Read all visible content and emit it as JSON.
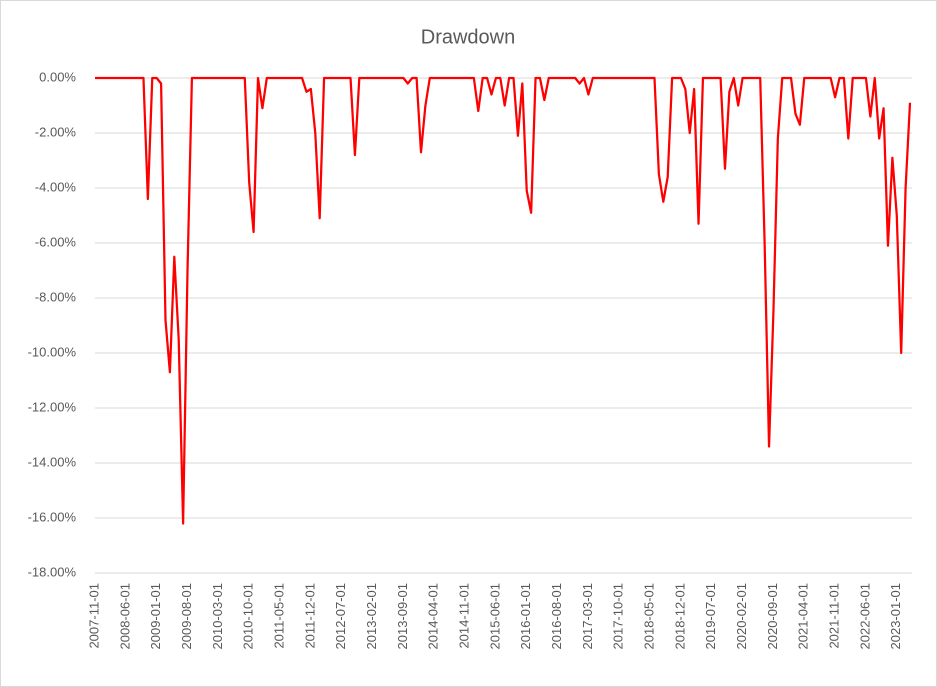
{
  "chart_data": {
    "type": "line",
    "title": "Drawdown",
    "categories": [
      "2007-11-01",
      null,
      null,
      null,
      null,
      null,
      null,
      "2008-06-01",
      null,
      null,
      null,
      null,
      null,
      null,
      "2009-01-01",
      null,
      null,
      null,
      null,
      null,
      null,
      "2009-08-01",
      null,
      null,
      null,
      null,
      null,
      null,
      "2010-03-01",
      null,
      null,
      null,
      null,
      null,
      null,
      "2010-10-01",
      null,
      null,
      null,
      null,
      null,
      null,
      "2011-05-01",
      null,
      null,
      null,
      null,
      null,
      null,
      "2011-12-01",
      null,
      null,
      null,
      null,
      null,
      null,
      "2012-07-01",
      null,
      null,
      null,
      null,
      null,
      null,
      "2013-02-01",
      null,
      null,
      null,
      null,
      null,
      null,
      "2013-09-01",
      null,
      null,
      null,
      null,
      null,
      null,
      "2014-04-01",
      null,
      null,
      null,
      null,
      null,
      null,
      "2014-11-01",
      null,
      null,
      null,
      null,
      null,
      null,
      "2015-06-01",
      null,
      null,
      null,
      null,
      null,
      null,
      "2016-01-01",
      null,
      null,
      null,
      null,
      null,
      null,
      "2016-08-01",
      null,
      null,
      null,
      null,
      null,
      null,
      "2017-03-01",
      null,
      null,
      null,
      null,
      null,
      null,
      "2017-10-01",
      null,
      null,
      null,
      null,
      null,
      null,
      "2018-05-01",
      null,
      null,
      null,
      null,
      null,
      null,
      "2018-12-01",
      null,
      null,
      null,
      null,
      null,
      null,
      "2019-07-01",
      null,
      null,
      null,
      null,
      null,
      null,
      "2020-02-01",
      null,
      null,
      null,
      null,
      null,
      null,
      "2020-09-01",
      null,
      null,
      null,
      null,
      null,
      null,
      "2021-04-01",
      null,
      null,
      null,
      null,
      null,
      null,
      "2021-11-01",
      null,
      null,
      null,
      null,
      null,
      null,
      "2022-06-01",
      null,
      null,
      null,
      null,
      null,
      null,
      "2023-01-01",
      null,
      null,
      null
    ],
    "values": [
      0,
      0,
      0,
      0,
      0,
      0,
      0,
      0,
      0,
      0,
      0,
      0,
      -4.4,
      0,
      0,
      -0.2,
      -8.8,
      -10.7,
      -6.5,
      -9.5,
      -16.2,
      -7,
      0,
      0,
      0,
      0,
      0,
      0,
      0,
      0,
      0,
      0,
      0,
      0,
      0,
      -3.8,
      -5.6,
      0,
      -1.1,
      0,
      0,
      0,
      0,
      0,
      0,
      0,
      0,
      0,
      -0.5,
      -0.4,
      -2.0,
      -5.1,
      0,
      0,
      0,
      0,
      0,
      0,
      0,
      -2.8,
      0,
      0,
      0,
      0,
      0,
      0,
      0,
      0,
      0,
      0,
      0,
      -0.2,
      0,
      0,
      -2.7,
      -1.0,
      0,
      0,
      0,
      0,
      0,
      0,
      0,
      0,
      0,
      0,
      0,
      -1.2,
      0,
      0,
      -0.6,
      0,
      0,
      -1.0,
      0,
      0,
      -2.1,
      -0.2,
      -4.1,
      -4.9,
      0,
      0,
      -0.8,
      0,
      0,
      0,
      0,
      0,
      0,
      0,
      -0.2,
      0,
      -0.6,
      0,
      0,
      0,
      0,
      0,
      0,
      0,
      0,
      0,
      0,
      0,
      0,
      0,
      0,
      0,
      -3.5,
      -4.5,
      -3.6,
      0,
      0,
      0,
      -0.4,
      -2.0,
      -0.4,
      -5.3,
      0,
      0,
      0,
      0,
      0,
      -3.3,
      -0.5,
      0,
      -1.0,
      0,
      0,
      0,
      0,
      0,
      -6.0,
      -13.4,
      -8.5,
      -2.2,
      0,
      0,
      0,
      -1.3,
      -1.7,
      0,
      0,
      0,
      0,
      0,
      0,
      0,
      -0.7,
      0,
      0,
      -2.2,
      0,
      0,
      0,
      0,
      -1.4,
      0,
      -2.2,
      -1.1,
      -6.1,
      -2.9,
      -5.0,
      -10.0,
      -4.0,
      -0.9
    ],
    "color": "#ff0000",
    "ylim": [
      -18,
      0
    ],
    "yticks": [
      {
        "value": 0,
        "label": "0.00%"
      },
      {
        "value": -2,
        "label": "-2.00%"
      },
      {
        "value": -4,
        "label": "-4.00%"
      },
      {
        "value": -6,
        "label": "-6.00%"
      },
      {
        "value": -8,
        "label": "-8.00%"
      },
      {
        "value": -10,
        "label": "-10.00%"
      },
      {
        "value": -12,
        "label": "-12.00%"
      },
      {
        "value": -14,
        "label": "-14.00%"
      },
      {
        "value": -16,
        "label": "-16.00%"
      },
      {
        "value": -18,
        "label": "-18.00%"
      }
    ],
    "grid": true
  }
}
